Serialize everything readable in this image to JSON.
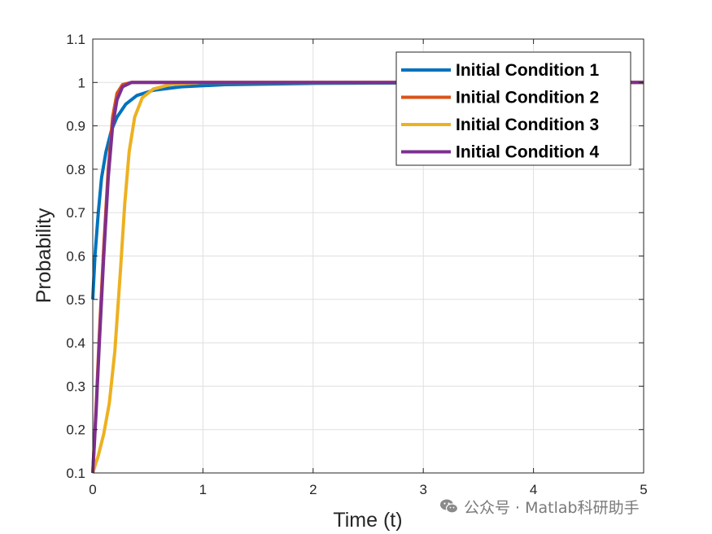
{
  "chart_data": {
    "type": "line",
    "title": "",
    "xlabel": "Time (t)",
    "ylabel": "Probability",
    "xlim": [
      0,
      5
    ],
    "ylim": [
      0.1,
      1.1
    ],
    "xticks": [
      0,
      1,
      2,
      3,
      4,
      5
    ],
    "yticks": [
      0.1,
      0.2,
      0.3,
      0.4,
      0.5,
      0.6,
      0.7,
      0.8,
      0.9,
      1.0,
      1.1
    ],
    "xtick_labels": [
      "0",
      "1",
      "2",
      "3",
      "4",
      "5"
    ],
    "ytick_labels": [
      "0.1",
      "0.2",
      "0.3",
      "0.4",
      "0.5",
      "0.6",
      "0.7",
      "0.8",
      "0.9",
      "1",
      "1.1"
    ],
    "grid": true,
    "legend_position": "top-right",
    "series": [
      {
        "name": "Initial Condition 1",
        "color": "#0072BD",
        "points": [
          [
            0,
            0.5
          ],
          [
            0.02,
            0.6
          ],
          [
            0.05,
            0.7
          ],
          [
            0.08,
            0.78
          ],
          [
            0.12,
            0.84
          ],
          [
            0.17,
            0.89
          ],
          [
            0.22,
            0.92
          ],
          [
            0.3,
            0.95
          ],
          [
            0.4,
            0.97
          ],
          [
            0.55,
            0.982
          ],
          [
            0.8,
            0.99
          ],
          [
            1.2,
            0.995
          ],
          [
            2,
            0.998
          ],
          [
            3,
            0.999
          ],
          [
            5,
            1.0
          ]
        ]
      },
      {
        "name": "Initial Condition 2",
        "color": "#D95319",
        "points": [
          [
            0,
            0.1
          ],
          [
            0.03,
            0.25
          ],
          [
            0.06,
            0.42
          ],
          [
            0.1,
            0.62
          ],
          [
            0.14,
            0.8
          ],
          [
            0.18,
            0.92
          ],
          [
            0.22,
            0.975
          ],
          [
            0.27,
            0.995
          ],
          [
            0.35,
            1.0
          ],
          [
            1,
            1.0
          ],
          [
            5,
            1.0
          ]
        ]
      },
      {
        "name": "Initial Condition 3",
        "color": "#EDB120",
        "points": [
          [
            0,
            0.1
          ],
          [
            0.05,
            0.14
          ],
          [
            0.1,
            0.19
          ],
          [
            0.15,
            0.26
          ],
          [
            0.2,
            0.38
          ],
          [
            0.25,
            0.56
          ],
          [
            0.29,
            0.72
          ],
          [
            0.33,
            0.84
          ],
          [
            0.38,
            0.92
          ],
          [
            0.45,
            0.965
          ],
          [
            0.55,
            0.985
          ],
          [
            0.7,
            0.995
          ],
          [
            1,
            1.0
          ],
          [
            5,
            1.0
          ]
        ]
      },
      {
        "name": "Initial Condition 4",
        "color": "#7E2F8E",
        "points": [
          [
            0,
            0.1
          ],
          [
            0.03,
            0.24
          ],
          [
            0.06,
            0.4
          ],
          [
            0.1,
            0.6
          ],
          [
            0.14,
            0.78
          ],
          [
            0.18,
            0.9
          ],
          [
            0.22,
            0.96
          ],
          [
            0.27,
            0.99
          ],
          [
            0.35,
            1.0
          ],
          [
            1,
            1.0
          ],
          [
            5,
            1.0
          ]
        ]
      }
    ]
  },
  "watermark": {
    "text": "公众号 · Matlab科研助手",
    "icon": "wechat-icon"
  }
}
